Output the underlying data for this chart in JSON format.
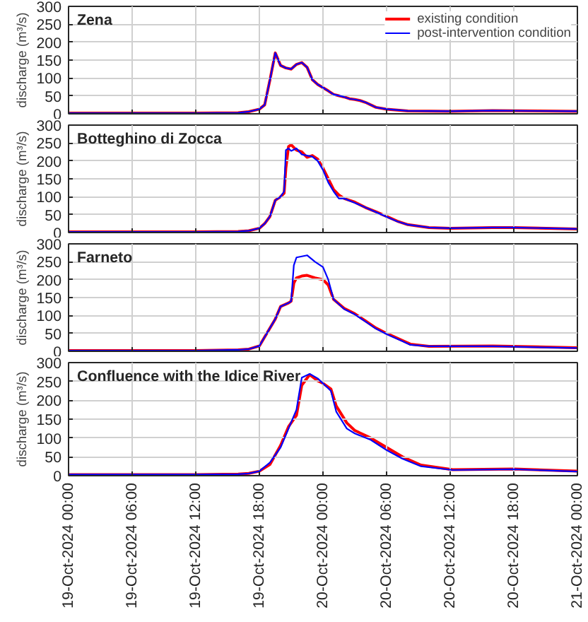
{
  "chart_data": [
    {
      "type": "line",
      "title": "Zena",
      "ylabel": "discharge (m³/s)",
      "legend": "top right",
      "grid": true,
      "tick_labels": "y",
      "x": [
        "2024-10-19T00:00",
        "2024-10-19T06:00",
        "2024-10-19T12:00",
        "2024-10-19T16:00",
        "2024-10-19T17:00",
        "2024-10-19T18:00",
        "2024-10-19T18:30",
        "2024-10-19T19:00",
        "2024-10-19T19:30",
        "2024-10-19T20:00",
        "2024-10-19T20:30",
        "2024-10-19T21:00",
        "2024-10-19T21:30",
        "2024-10-19T22:00",
        "2024-10-19T22:30",
        "2024-10-19T23:00",
        "2024-10-19T23:30",
        "2024-10-20T00:00",
        "2024-10-20T00:30",
        "2024-10-20T01:00",
        "2024-10-20T02:00",
        "2024-10-20T02:30",
        "2024-10-20T03:00",
        "2024-10-20T03:30",
        "2024-10-20T04:00",
        "2024-10-20T05:00",
        "2024-10-20T06:00",
        "2024-10-20T08:00",
        "2024-10-20T12:00",
        "2024-10-20T16:00",
        "2024-10-21T00:00"
      ],
      "series": [
        {
          "name": "existing condition",
          "color": "#ff0000",
          "values": [
            2,
            2,
            2,
            3,
            6,
            13,
            25,
            95,
            170,
            135,
            128,
            125,
            138,
            143,
            130,
            95,
            82,
            73,
            64,
            54,
            47,
            42,
            40,
            37,
            32,
            18,
            13,
            8,
            7,
            9,
            7
          ]
        },
        {
          "name": "post-intervention condition",
          "color": "#0000ff",
          "values": [
            2,
            2,
            2,
            3,
            6,
            13,
            25,
            95,
            170,
            135,
            128,
            125,
            138,
            143,
            130,
            95,
            82,
            73,
            64,
            54,
            47,
            42,
            40,
            37,
            32,
            18,
            13,
            8,
            7,
            9,
            7
          ]
        }
      ],
      "xlim": [
        "2024-10-19T00:00",
        "2024-10-21T00:00"
      ],
      "ylim": [
        0,
        300
      ],
      "yticks": [
        0,
        50,
        100,
        150,
        200,
        250,
        300
      ],
      "xticks": [
        {
          "value": "2024-10-19T00:00",
          "label": null
        },
        {
          "value": "2024-10-19T06:00",
          "label": null
        },
        {
          "value": "2024-10-19T12:00",
          "label": null
        },
        {
          "value": "2024-10-19T18:00",
          "label": null
        },
        {
          "value": "2024-10-20T00:00",
          "label": null
        },
        {
          "value": "2024-10-20T06:00",
          "label": null
        },
        {
          "value": "2024-10-20T12:00",
          "label": null
        },
        {
          "value": "2024-10-20T18:00",
          "label": null
        },
        {
          "value": "2024-10-21T00:00",
          "label": null
        }
      ]
    },
    {
      "type": "line",
      "title": "Botteghino di Zocca",
      "ylabel": "discharge (m³/s)",
      "grid": true,
      "tick_labels": "y",
      "x": [
        "2024-10-19T00:00",
        "2024-10-19T06:00",
        "2024-10-19T12:00",
        "2024-10-19T16:00",
        "2024-10-19T17:00",
        "2024-10-19T18:00",
        "2024-10-19T18:30",
        "2024-10-19T19:00",
        "2024-10-19T19:30",
        "2024-10-19T20:00",
        "2024-10-19T20:20",
        "2024-10-19T20:30",
        "2024-10-19T20:45",
        "2024-10-19T21:00",
        "2024-10-19T21:30",
        "2024-10-19T22:00",
        "2024-10-19T22:30",
        "2024-10-19T23:00",
        "2024-10-19T23:30",
        "2024-10-20T00:00",
        "2024-10-20T00:30",
        "2024-10-20T01:00",
        "2024-10-20T01:30",
        "2024-10-20T02:00",
        "2024-10-20T03:00",
        "2024-10-20T04:00",
        "2024-10-20T05:00",
        "2024-10-20T06:00",
        "2024-10-20T07:00",
        "2024-10-20T08:00",
        "2024-10-20T10:00",
        "2024-10-20T12:00",
        "2024-10-20T16:00",
        "2024-10-20T18:00",
        "2024-10-21T00:00"
      ],
      "series": [
        {
          "color": "#ff0000",
          "values": [
            2,
            2,
            2,
            3,
            5,
            12,
            25,
            45,
            90,
            100,
            110,
            180,
            240,
            245,
            230,
            225,
            210,
            215,
            205,
            180,
            150,
            120,
            105,
            95,
            85,
            70,
            58,
            45,
            32,
            22,
            14,
            12,
            14,
            14,
            10
          ]
        },
        {
          "color": "#0000ff",
          "values": [
            2,
            2,
            2,
            3,
            5,
            12,
            25,
            45,
            90,
            100,
            115,
            230,
            235,
            228,
            235,
            218,
            215,
            212,
            200,
            175,
            140,
            115,
            95,
            95,
            83,
            70,
            57,
            44,
            31,
            22,
            14,
            12,
            14,
            14,
            10
          ]
        }
      ],
      "xlim": [
        "2024-10-19T00:00",
        "2024-10-21T00:00"
      ],
      "ylim": [
        0,
        300
      ],
      "yticks": [
        0,
        50,
        100,
        150,
        200,
        250,
        300
      ],
      "xticks": [
        {
          "value": "2024-10-19T00:00",
          "label": null
        },
        {
          "value": "2024-10-19T06:00",
          "label": null
        },
        {
          "value": "2024-10-19T12:00",
          "label": null
        },
        {
          "value": "2024-10-19T18:00",
          "label": null
        },
        {
          "value": "2024-10-20T00:00",
          "label": null
        },
        {
          "value": "2024-10-20T06:00",
          "label": null
        },
        {
          "value": "2024-10-20T12:00",
          "label": null
        },
        {
          "value": "2024-10-20T18:00",
          "label": null
        },
        {
          "value": "2024-10-21T00:00",
          "label": null
        }
      ]
    },
    {
      "type": "line",
      "title": "Farneto",
      "ylabel": "discharge (m³/s)",
      "grid": true,
      "tick_labels": "y",
      "x": [
        "2024-10-19T00:00",
        "2024-10-19T06:00",
        "2024-10-19T12:00",
        "2024-10-19T16:00",
        "2024-10-19T17:00",
        "2024-10-19T18:00",
        "2024-10-19T18:30",
        "2024-10-19T19:30",
        "2024-10-19T20:00",
        "2024-10-19T20:45",
        "2024-10-19T21:00",
        "2024-10-19T21:15",
        "2024-10-19T21:30",
        "2024-10-19T22:00",
        "2024-10-19T22:30",
        "2024-10-19T23:15",
        "2024-10-20T00:00",
        "2024-10-20T00:30",
        "2024-10-20T01:00",
        "2024-10-20T02:00",
        "2024-10-20T03:00",
        "2024-10-20T04:00",
        "2024-10-20T05:00",
        "2024-10-20T06:00",
        "2024-10-20T07:30",
        "2024-10-20T08:15",
        "2024-10-20T10:00",
        "2024-10-20T16:00",
        "2024-10-21T00:00"
      ],
      "series": [
        {
          "color": "#ff0000",
          "values": [
            2,
            2,
            2,
            4,
            6,
            15,
            40,
            90,
            125,
            135,
            140,
            190,
            205,
            210,
            212,
            205,
            200,
            185,
            145,
            120,
            105,
            85,
            65,
            50,
            30,
            20,
            14,
            15,
            10
          ]
        },
        {
          "color": "#0000ff",
          "values": [
            2,
            2,
            2,
            4,
            6,
            15,
            40,
            90,
            125,
            135,
            140,
            240,
            262,
            265,
            268,
            250,
            235,
            200,
            145,
            118,
            103,
            83,
            63,
            48,
            28,
            18,
            14,
            14,
            9
          ]
        }
      ],
      "xlim": [
        "2024-10-19T00:00",
        "2024-10-21T00:00"
      ],
      "ylim": [
        0,
        300
      ],
      "yticks": [
        0,
        50,
        100,
        150,
        200,
        250,
        300
      ],
      "xticks": [
        {
          "value": "2024-10-19T00:00",
          "label": null
        },
        {
          "value": "2024-10-19T06:00",
          "label": null
        },
        {
          "value": "2024-10-19T12:00",
          "label": null
        },
        {
          "value": "2024-10-19T18:00",
          "label": null
        },
        {
          "value": "2024-10-20T00:00",
          "label": null
        },
        {
          "value": "2024-10-20T06:00",
          "label": null
        },
        {
          "value": "2024-10-20T12:00",
          "label": null
        },
        {
          "value": "2024-10-20T18:00",
          "label": null
        },
        {
          "value": "2024-10-21T00:00",
          "label": null
        }
      ]
    },
    {
      "type": "line",
      "title": "Confluence with the Idice River",
      "ylabel": "discharge (m³/s)",
      "grid": true,
      "x": [
        "2024-10-19T00:00",
        "2024-10-19T06:00",
        "2024-10-19T12:00",
        "2024-10-19T16:00",
        "2024-10-19T17:00",
        "2024-10-19T18:00",
        "2024-10-19T19:00",
        "2024-10-19T20:00",
        "2024-10-19T20:45",
        "2024-10-19T21:30",
        "2024-10-19T22:00",
        "2024-10-19T22:45",
        "2024-10-19T23:30",
        "2024-10-20T00:00",
        "2024-10-20T00:45",
        "2024-10-20T01:15",
        "2024-10-20T02:15",
        "2024-10-20T03:00",
        "2024-10-20T04:30",
        "2024-10-20T06:00",
        "2024-10-20T07:30",
        "2024-10-20T09:15",
        "2024-10-20T12:15",
        "2024-10-20T18:00",
        "2024-10-21T00:00"
      ],
      "series": [
        {
          "color": "#ff0000",
          "values": [
            3,
            3,
            3,
            4,
            6,
            12,
            30,
            80,
            130,
            160,
            240,
            268,
            252,
            245,
            230,
            185,
            140,
            120,
            100,
            75,
            50,
            28,
            16,
            18,
            12
          ]
        },
        {
          "color": "#0000ff",
          "values": [
            3,
            3,
            3,
            4,
            6,
            12,
            35,
            75,
            125,
            175,
            260,
            270,
            258,
            245,
            225,
            170,
            125,
            112,
            95,
            68,
            45,
            25,
            15,
            17,
            11
          ]
        }
      ],
      "xlim": [
        "2024-10-19T00:00",
        "2024-10-21T00:00"
      ],
      "ylim": [
        0,
        300
      ],
      "yticks": [
        0,
        50,
        100,
        150,
        200,
        250,
        300
      ],
      "xticks": [
        {
          "value": "2024-10-19T00:00",
          "label": "19-Oct-2024 00:00"
        },
        {
          "value": "2024-10-19T06:00",
          "label": "19-Oct-2024 06:00"
        },
        {
          "value": "2024-10-19T12:00",
          "label": "19-Oct-2024 12:00"
        },
        {
          "value": "2024-10-19T18:00",
          "label": "19-Oct-2024 18:00"
        },
        {
          "value": "2024-10-20T00:00",
          "label": "20-Oct-2024 00:00"
        },
        {
          "value": "2024-10-20T06:00",
          "label": "20-Oct-2024 06:00"
        },
        {
          "value": "2024-10-20T12:00",
          "label": "20-Oct-2024 12:00"
        },
        {
          "value": "2024-10-20T18:00",
          "label": "20-Oct-2024 18:00"
        },
        {
          "value": "2024-10-21T00:00",
          "label": "21-Oct-2024 00:00"
        }
      ]
    }
  ]
}
